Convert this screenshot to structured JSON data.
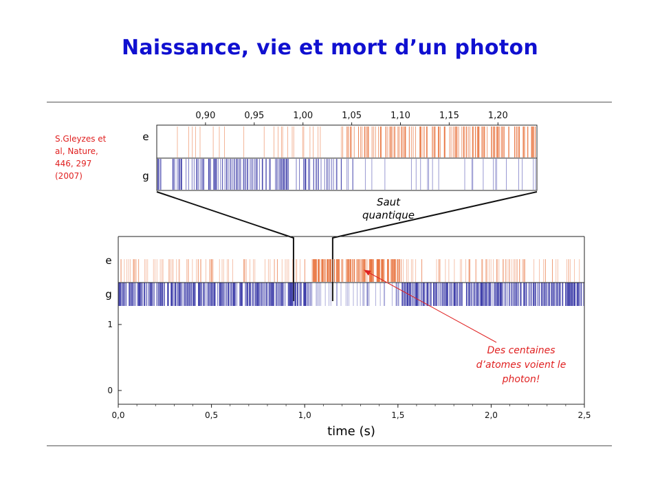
{
  "title": "Naissance, vie et mort d’un photon",
  "reference": {
    "lines": [
      "S.Gleyzes et",
      "al, Nature,",
      "446, 297",
      "(2007)"
    ]
  },
  "colors": {
    "title": "#1010d0",
    "e_state": "#e8703a",
    "g_state": "#3c3ca8",
    "annotation": "#e02020"
  },
  "chart_data": [
    {
      "type": "event-raster",
      "xlabel": "",
      "ylabel": "",
      "rows": [
        "e",
        "g"
      ],
      "xlim": [
        0.85,
        1.24
      ],
      "x_ticks": [
        "0,90",
        "0,95",
        "1,00",
        "1,05",
        "1,10",
        "1,15",
        "1,20"
      ],
      "x_tick_values": [
        0.9,
        0.95,
        1.0,
        1.05,
        1.1,
        1.15,
        1.2
      ],
      "regions": [
        {
          "from": 0.85,
          "to": 1.04,
          "dominant": "g"
        },
        {
          "from": 1.04,
          "to": 1.24,
          "dominant": "e"
        }
      ]
    },
    {
      "type": "event-raster",
      "xlabel": "time (s)",
      "ylabel": "",
      "rows": [
        "e",
        "g"
      ],
      "xlim": [
        0.0,
        2.5
      ],
      "x_ticks": [
        "0,0",
        "0,5",
        "1,0",
        "1,5",
        "2,0",
        "2,5"
      ],
      "x_tick_values": [
        0.0,
        0.5,
        1.0,
        1.5,
        2.0,
        2.5
      ],
      "y_ticks": [
        "1",
        "0"
      ],
      "y_tick_values": [
        1,
        0
      ],
      "regions": [
        {
          "from": 0.0,
          "to": 1.04,
          "dominant": "g"
        },
        {
          "from": 1.04,
          "to": 1.52,
          "dominant": "e"
        },
        {
          "from": 1.52,
          "to": 2.5,
          "dominant": "g"
        }
      ],
      "zoom_window": [
        0.94,
        1.15
      ]
    }
  ],
  "inset_labels": {
    "e": "e",
    "g": "g"
  },
  "main_labels": {
    "e": "e",
    "g": "g"
  },
  "jump_label": [
    "Saut",
    "quantique"
  ],
  "annotation": [
    "Des centaines",
    "d’atomes voient le",
    "photon!"
  ]
}
